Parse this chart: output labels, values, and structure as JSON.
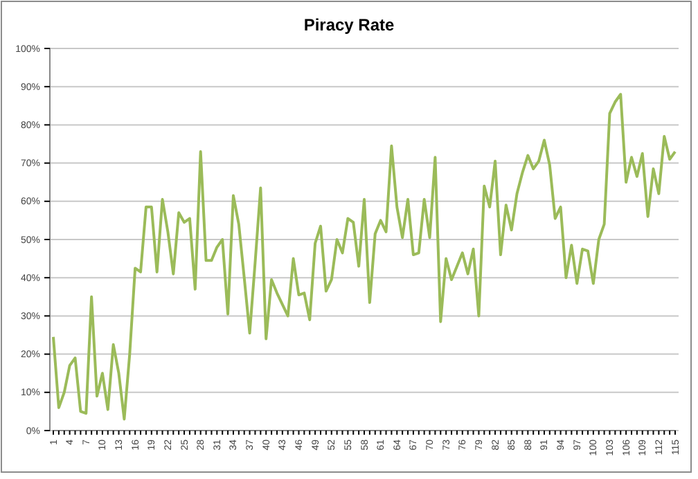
{
  "chart_data": {
    "type": "line",
    "title": "Piracy Rate",
    "categories": [
      "1",
      null,
      null,
      "4",
      null,
      null,
      "7",
      null,
      null,
      "10",
      null,
      null,
      "13",
      null,
      null,
      "16",
      null,
      null,
      "19",
      null,
      null,
      "22",
      null,
      null,
      "25",
      null,
      null,
      "28",
      null,
      null,
      "31",
      null,
      null,
      "34",
      null,
      null,
      "37",
      null,
      null,
      "40",
      null,
      null,
      "43",
      null,
      null,
      "46",
      null,
      null,
      "49",
      null,
      null,
      "52",
      null,
      null,
      "55",
      null,
      null,
      "58",
      null,
      null,
      "61",
      null,
      null,
      "64",
      null,
      null,
      "67",
      null,
      null,
      "70",
      null,
      null,
      "73",
      null,
      null,
      "76",
      null,
      null,
      "79",
      null,
      null,
      "82",
      null,
      null,
      "85",
      null,
      null,
      "88",
      null,
      null,
      "91",
      null,
      null,
      "94",
      null,
      null,
      "97",
      null,
      null,
      "100",
      null,
      null,
      "103",
      null,
      null,
      "106",
      null,
      null,
      "109",
      null,
      null,
      "112",
      null,
      null,
      "115"
    ],
    "series": [
      {
        "color": "#9bbb59",
        "values": [
          24.5,
          6,
          10,
          17,
          19,
          5,
          4.5,
          35,
          9,
          15,
          5.5,
          22.5,
          15,
          3,
          20,
          42.5,
          41.5,
          58.5,
          58.5,
          41.5,
          60.5,
          52,
          41,
          57,
          54.5,
          55.5,
          37,
          73,
          44.5,
          44.5,
          48,
          50,
          30.5,
          61.5,
          54,
          40,
          25.5,
          44,
          63.5,
          24,
          39.5,
          36,
          33,
          30,
          45,
          35.5,
          36,
          29,
          49,
          53.5,
          36.5,
          39.5,
          50,
          46.5,
          55.5,
          54.5,
          43,
          60.5,
          33.5,
          51.5,
          55,
          52,
          74.5,
          58.5,
          50.5,
          60.5,
          46,
          46.5,
          60.5,
          50.5,
          71.5,
          28.5,
          45,
          39.5,
          43,
          46.5,
          41,
          47.5,
          30,
          64,
          58.5,
          70.5,
          46,
          59,
          52.5,
          62,
          67.5,
          72,
          68.5,
          70.5,
          76,
          69.5,
          55.5,
          58.5,
          40,
          48.5,
          38.5,
          47.5,
          47,
          38.5,
          50,
          54,
          83,
          86,
          88,
          65,
          71.5,
          66.5,
          72.5,
          56,
          68.5,
          62,
          77,
          71,
          73
        ]
      }
    ],
    "ylim": [
      0,
      100
    ],
    "yticks": [
      {
        "value": 0,
        "label": "0%"
      },
      {
        "value": 10,
        "label": "10%"
      },
      {
        "value": 20,
        "label": "20%"
      },
      {
        "value": 30,
        "label": "30%"
      },
      {
        "value": 40,
        "label": "40%"
      },
      {
        "value": 50,
        "label": "50%"
      },
      {
        "value": 60,
        "label": "60%"
      },
      {
        "value": 70,
        "label": "70%"
      },
      {
        "value": 80,
        "label": "80%"
      },
      {
        "value": 90,
        "label": "90%"
      },
      {
        "value": 100,
        "label": "100%"
      }
    ],
    "grid": "y",
    "legend": false,
    "marker": "none",
    "line_style": "solid"
  }
}
